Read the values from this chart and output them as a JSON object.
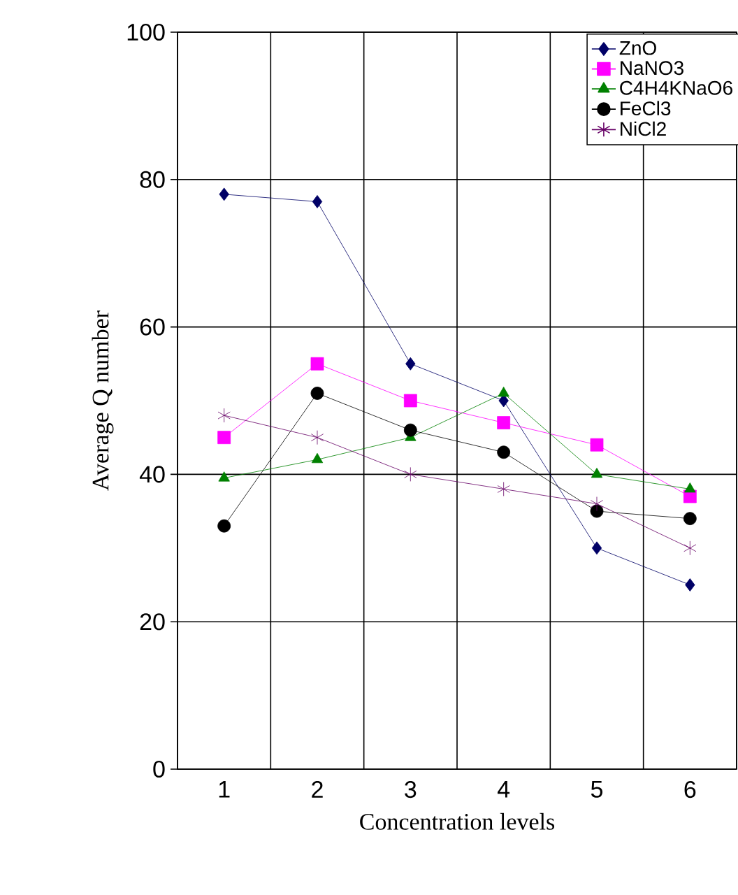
{
  "chart_data": {
    "type": "line",
    "xlabel": "Concentration levels",
    "ylabel": "Average Q number",
    "categories": [
      "1",
      "2",
      "3",
      "4",
      "5",
      "6"
    ],
    "ylim": [
      0,
      100
    ],
    "yticks": [
      0,
      20,
      40,
      60,
      80,
      100
    ],
    "grid": true,
    "legend": "top right",
    "series": [
      {
        "name": "ZnO",
        "color": "#000066",
        "marker": "diamond",
        "values": [
          78,
          77,
          55,
          50,
          30,
          25
        ]
      },
      {
        "name": "NaNO3",
        "color": "#ff00ff",
        "marker": "square",
        "values": [
          45,
          55,
          50,
          47,
          44,
          37
        ]
      },
      {
        "name": "C4H4KNaO6",
        "color": "#008000",
        "marker": "triangle",
        "values": [
          39.5,
          42,
          45,
          51,
          40,
          38
        ]
      },
      {
        "name": "FeCl3",
        "color": "#000000",
        "marker": "circle",
        "values": [
          33,
          51,
          46,
          43,
          35,
          34
        ]
      },
      {
        "name": "NiCl2",
        "color": "#660066",
        "marker": "cross",
        "values": [
          48,
          45,
          40,
          38,
          36,
          30
        ]
      }
    ]
  }
}
